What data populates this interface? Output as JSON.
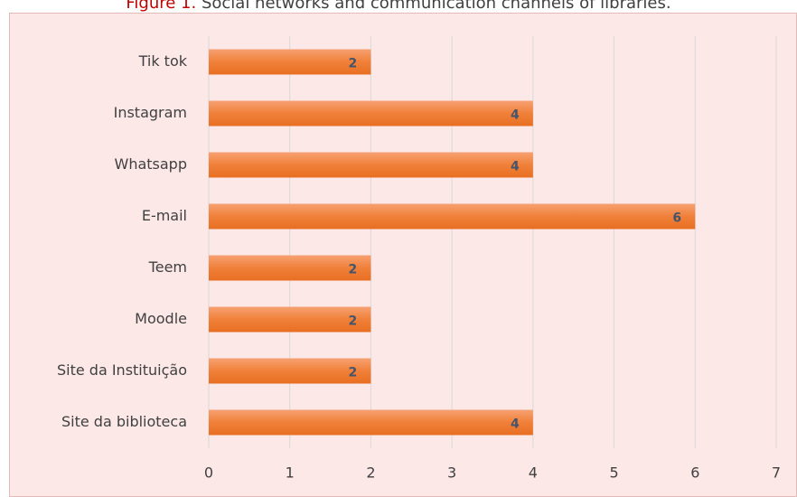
{
  "chart_data": {
    "type": "bar",
    "orientation": "horizontal",
    "figure_label": "Figure 1.",
    "title": "Social networks and communication channels of libraries.",
    "categories": [
      "Tik tok",
      "Instagram ",
      "Whatsapp",
      "E-mail ",
      "Teem",
      "Moodle",
      "Site da Instituição ",
      "Site da biblioteca"
    ],
    "values": [
      2,
      4,
      4,
      6,
      2,
      2,
      2,
      4
    ],
    "color": "#f07e38",
    "xlim": [
      0,
      7
    ],
    "xticks": [
      0,
      1,
      2,
      3,
      4,
      5,
      6,
      7
    ],
    "grid": true
  }
}
